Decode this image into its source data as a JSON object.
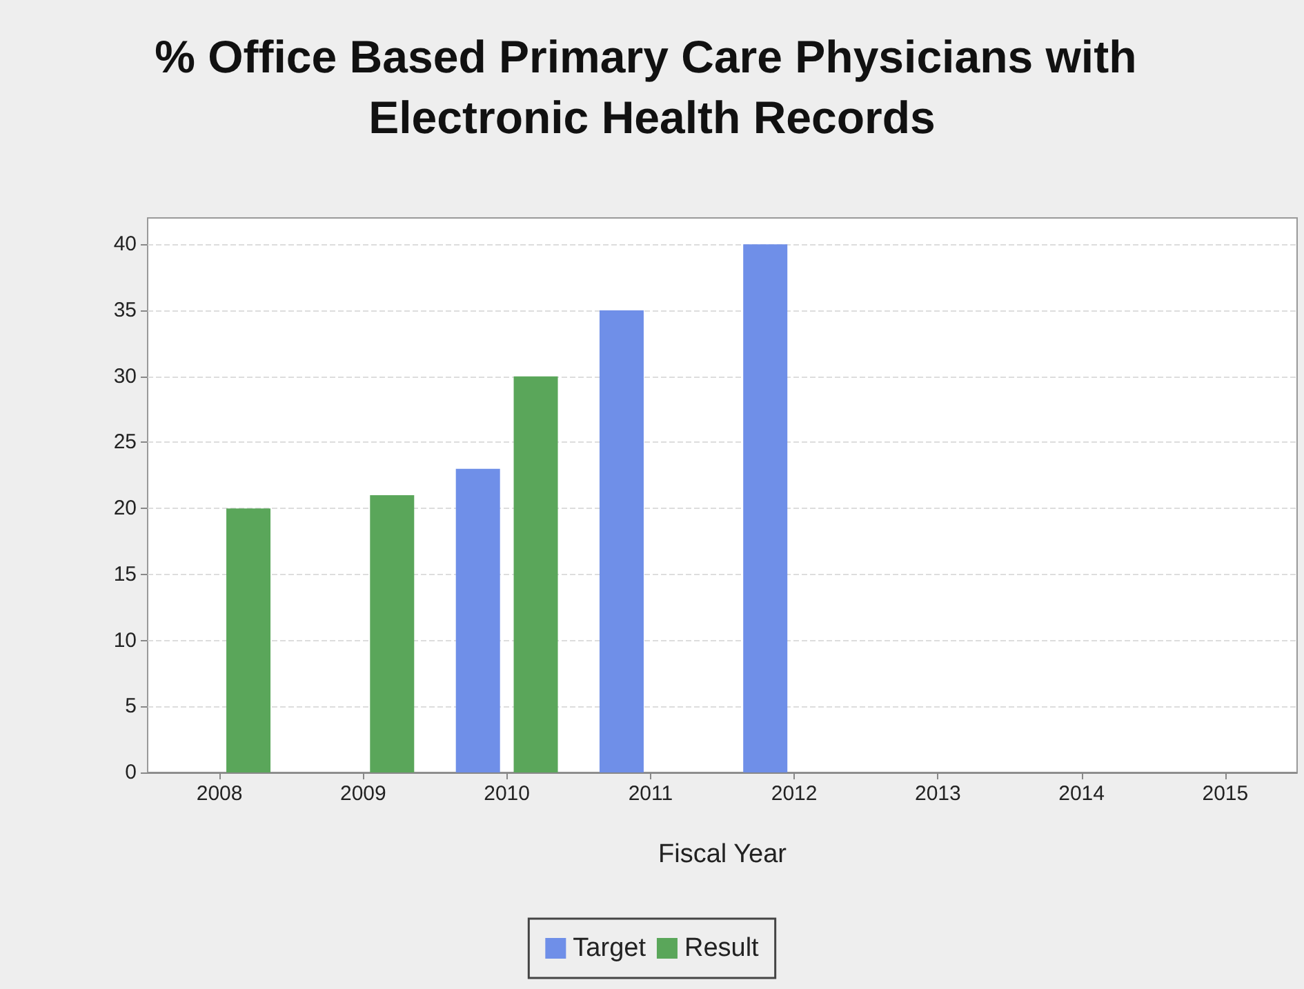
{
  "chart_data": {
    "type": "bar",
    "title": "% Office Based Primary Care Physicians with Electronic Health Records",
    "xlabel": "Fiscal Year",
    "categories": [
      "2008",
      "2009",
      "2010",
      "2011",
      "2012",
      "2013",
      "2014",
      "2015"
    ],
    "series": [
      {
        "name": "Target",
        "color": "#6f8fe8",
        "values": [
          null,
          null,
          23,
          35,
          40,
          null,
          null,
          null
        ]
      },
      {
        "name": "Result",
        "color": "#5aa65a",
        "values": [
          20,
          21,
          30,
          null,
          null,
          null,
          null,
          null
        ]
      }
    ],
    "ylim": [
      0,
      42
    ],
    "yticks": [
      0,
      5,
      10,
      15,
      20,
      25,
      30,
      35,
      40
    ],
    "grid": "y",
    "legend": "bottom"
  }
}
